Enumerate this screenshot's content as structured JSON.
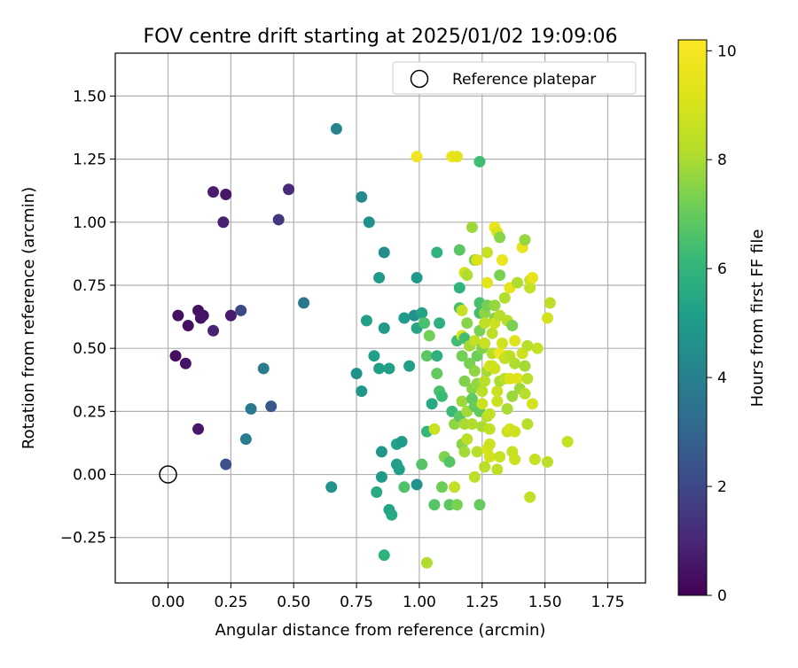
{
  "chart_data": {
    "type": "scatter",
    "title": "FOV centre drift starting at 2025/01/02 19:09:06",
    "xlabel": "Angular distance from reference (arcmin)",
    "ylabel": "Rotation from reference (arcmin)",
    "xlim": [
      -0.21,
      1.9
    ],
    "ylim": [
      -0.43,
      1.67
    ],
    "xticks": [
      0.0,
      0.25,
      0.5,
      0.75,
      1.0,
      1.25,
      1.5,
      1.75
    ],
    "xtick_labels": [
      "0.00",
      "0.25",
      "0.50",
      "0.75",
      "1.00",
      "1.25",
      "1.50",
      "1.75"
    ],
    "yticks": [
      -0.25,
      0.0,
      0.25,
      0.5,
      0.75,
      1.0,
      1.25,
      1.5
    ],
    "ytick_labels": [
      "−0.25",
      "0.00",
      "0.25",
      "0.50",
      "0.75",
      "1.00",
      "1.25",
      "1.50"
    ],
    "grid": true,
    "legend": {
      "position": "top-right",
      "label": "Reference platepar",
      "marker": "open-circle"
    },
    "reference_point": {
      "x": 0.0,
      "y": 0.0
    },
    "colorbar": {
      "label": "Hours from first FF file",
      "range": [
        0,
        10.2
      ],
      "ticks": [
        0,
        2,
        4,
        6,
        8,
        10
      ],
      "tick_labels": [
        "0",
        "2",
        "4",
        "6",
        "8",
        "10"
      ],
      "colormap": "viridis"
    },
    "points": [
      [
        0.03,
        0.47,
        0.3
      ],
      [
        0.04,
        0.63,
        0.4
      ],
      [
        0.07,
        0.44,
        0.5
      ],
      [
        0.08,
        0.59,
        0.4
      ],
      [
        0.12,
        0.65,
        0.4
      ],
      [
        0.13,
        0.62,
        0.5
      ],
      [
        0.14,
        0.63,
        0.5
      ],
      [
        0.12,
        0.18,
        0.6
      ],
      [
        0.18,
        0.57,
        0.9
      ],
      [
        0.25,
        0.63,
        0.7
      ],
      [
        0.29,
        0.65,
        2.0
      ],
      [
        0.23,
        0.04,
        2.3
      ],
      [
        0.18,
        1.12,
        0.7
      ],
      [
        0.23,
        1.11,
        0.6
      ],
      [
        0.22,
        1.0,
        0.8
      ],
      [
        0.48,
        1.13,
        1.1
      ],
      [
        0.44,
        1.01,
        1.4
      ],
      [
        0.31,
        0.14,
        3.9
      ],
      [
        0.33,
        0.26,
        3.7
      ],
      [
        0.38,
        0.42,
        3.9
      ],
      [
        0.41,
        0.27,
        2.5
      ],
      [
        0.54,
        0.68,
        3.6
      ],
      [
        0.67,
        1.37,
        4.1
      ],
      [
        0.65,
        -0.05,
        4.7
      ],
      [
        0.77,
        1.1,
        4.4
      ],
      [
        0.8,
        1.0,
        4.6
      ],
      [
        0.75,
        0.4,
        4.7
      ],
      [
        0.77,
        0.33,
        4.8
      ],
      [
        0.79,
        0.61,
        5.2
      ],
      [
        0.82,
        0.47,
        5.2
      ],
      [
        0.84,
        0.42,
        5.2
      ],
      [
        0.84,
        0.78,
        5.0
      ],
      [
        0.86,
        0.88,
        4.5
      ],
      [
        0.86,
        0.58,
        5.0
      ],
      [
        0.85,
        0.09,
        4.8
      ],
      [
        0.85,
        -0.01,
        5.0
      ],
      [
        0.88,
        0.42,
        5.2
      ],
      [
        0.83,
        -0.07,
        5.5
      ],
      [
        0.86,
        -0.32,
        5.9
      ],
      [
        0.88,
        -0.14,
        5.3
      ],
      [
        0.89,
        -0.16,
        5.5
      ],
      [
        0.91,
        0.12,
        5.3
      ],
      [
        0.91,
        0.04,
        5.2
      ],
      [
        0.92,
        0.02,
        5.2
      ],
      [
        0.93,
        0.13,
        5.0
      ],
      [
        0.94,
        0.62,
        5.0
      ],
      [
        0.94,
        -0.05,
        6.6
      ],
      [
        0.96,
        0.43,
        5.2
      ],
      [
        0.98,
        0.63,
        4.6
      ],
      [
        0.99,
        0.58,
        5.4
      ],
      [
        0.99,
        -0.04,
        4.7
      ],
      [
        0.99,
        0.78,
        4.9
      ],
      [
        1.01,
        0.64,
        5.3
      ],
      [
        1.01,
        0.04,
        6.7
      ],
      [
        1.02,
        0.6,
        6.5
      ],
      [
        1.03,
        0.17,
        6.1
      ],
      [
        1.03,
        -0.35,
        8.1
      ],
      [
        1.03,
        0.47,
        6.8
      ],
      [
        1.04,
        0.55,
        7.2
      ],
      [
        1.05,
        0.28,
        5.5
      ],
      [
        1.06,
        0.18,
        8.7
      ],
      [
        1.06,
        -0.12,
        6.7
      ],
      [
        1.07,
        0.88,
        5.9
      ],
      [
        1.07,
        0.47,
        5.8
      ],
      [
        1.07,
        0.4,
        6.9
      ],
      [
        1.08,
        0.6,
        5.8
      ],
      [
        1.08,
        0.33,
        6.5
      ],
      [
        1.09,
        -0.05,
        7.1
      ],
      [
        1.09,
        0.31,
        6.2
      ],
      [
        1.1,
        0.07,
        7.4
      ],
      [
        1.12,
        -0.12,
        6.8
      ],
      [
        1.12,
        0.05,
        6.7
      ],
      [
        1.13,
        0.25,
        6.2
      ],
      [
        0.99,
        1.26,
        9.8
      ],
      [
        1.13,
        1.26,
        9.6
      ],
      [
        1.15,
        1.26,
        9.4
      ],
      [
        1.14,
        0.2,
        7.6
      ],
      [
        1.14,
        -0.05,
        8.5
      ],
      [
        1.15,
        -0.12,
        7.3
      ],
      [
        1.15,
        0.53,
        6.3
      ],
      [
        1.16,
        0.23,
        6.8
      ],
      [
        1.16,
        0.74,
        5.9
      ],
      [
        1.16,
        0.66,
        6.5
      ],
      [
        1.16,
        0.89,
        6.8
      ],
      [
        1.17,
        0.55,
        9.2
      ],
      [
        1.17,
        0.47,
        7.2
      ],
      [
        1.17,
        0.29,
        7.8
      ],
      [
        1.17,
        0.65,
        8.6
      ],
      [
        1.17,
        0.12,
        7.5
      ],
      [
        1.18,
        0.8,
        8.9
      ],
      [
        1.18,
        0.37,
        7.4
      ],
      [
        1.18,
        0.54,
        6.4
      ],
      [
        1.18,
        0.2,
        8.0
      ],
      [
        1.18,
        0.09,
        7.9
      ],
      [
        1.19,
        0.79,
        8.1
      ],
      [
        1.19,
        0.6,
        7.5
      ],
      [
        1.19,
        0.25,
        7.9
      ],
      [
        1.19,
        0.14,
        8.3
      ],
      [
        1.2,
        0.44,
        7.3
      ],
      [
        1.2,
        0.51,
        7.9
      ],
      [
        1.21,
        0.98,
        7.8
      ],
      [
        1.21,
        0.34,
        7.5
      ],
      [
        1.21,
        0.3,
        6.9
      ],
      [
        1.21,
        0.2,
        8.1
      ],
      [
        1.22,
        0.41,
        7.6
      ],
      [
        1.22,
        0.85,
        7.4
      ],
      [
        1.22,
        0.27,
        7.0
      ],
      [
        1.22,
        0.53,
        8.5
      ],
      [
        1.22,
        -0.01,
        8.4
      ],
      [
        1.23,
        0.85,
        9.2
      ],
      [
        1.23,
        0.36,
        7.7
      ],
      [
        1.23,
        0.09,
        8.2
      ],
      [
        1.23,
        0.47,
        7.1
      ],
      [
        1.24,
        1.24,
        6.3
      ],
      [
        1.24,
        0.64,
        6.4
      ],
      [
        1.24,
        0.68,
        6.5
      ],
      [
        1.24,
        0.57,
        7.3
      ],
      [
        1.24,
        0.25,
        6.9
      ],
      [
        1.24,
        -0.12,
        7.0
      ],
      [
        1.25,
        0.5,
        7.4
      ],
      [
        1.25,
        0.33,
        8.3
      ],
      [
        1.25,
        0.19,
        8.0
      ],
      [
        1.25,
        0.28,
        8.8
      ],
      [
        1.26,
        0.03,
        8.3
      ],
      [
        1.26,
        0.64,
        7.6
      ],
      [
        1.26,
        0.37,
        8.3
      ],
      [
        1.26,
        0.6,
        8.4
      ],
      [
        1.26,
        0.52,
        8.6
      ],
      [
        1.27,
        0.76,
        9.4
      ],
      [
        1.27,
        0.67,
        7.2
      ],
      [
        1.27,
        0.41,
        7.9
      ],
      [
        1.27,
        0.23,
        8.2
      ],
      [
        1.27,
        0.88,
        8.6
      ],
      [
        1.27,
        0.1,
        9.0
      ],
      [
        1.28,
        0.43,
        9.2
      ],
      [
        1.28,
        0.24,
        8.5
      ],
      [
        1.28,
        0.18,
        8.5
      ],
      [
        1.28,
        0.12,
        8.8
      ],
      [
        1.28,
        0.07,
        8.9
      ],
      [
        1.29,
        0.43,
        8.7
      ],
      [
        1.29,
        0.56,
        8.4
      ],
      [
        1.29,
        0.48,
        8.3
      ],
      [
        1.3,
        0.42,
        8.8
      ],
      [
        1.3,
        0.62,
        7.5
      ],
      [
        1.3,
        0.98,
        9.6
      ],
      [
        1.3,
        0.67,
        7.7
      ],
      [
        1.3,
        0.6,
        8.8
      ],
      [
        1.31,
        0.33,
        8.7
      ],
      [
        1.31,
        0.96,
        9.1
      ],
      [
        1.31,
        0.02,
        8.4
      ],
      [
        1.31,
        0.29,
        8.7
      ],
      [
        1.32,
        0.48,
        9.8
      ],
      [
        1.32,
        0.79,
        7.3
      ],
      [
        1.32,
        0.94,
        7.5
      ],
      [
        1.32,
        0.63,
        8.2
      ],
      [
        1.32,
        0.37,
        8.0
      ],
      [
        1.32,
        0.07,
        8.6
      ],
      [
        1.33,
        0.85,
        9.6
      ],
      [
        1.33,
        0.52,
        8.9
      ],
      [
        1.34,
        0.7,
        8.1
      ],
      [
        1.34,
        0.46,
        8.5
      ],
      [
        1.34,
        0.38,
        8.3
      ],
      [
        1.35,
        0.47,
        8.7
      ],
      [
        1.35,
        0.61,
        8.2
      ],
      [
        1.35,
        0.26,
        8.0
      ],
      [
        1.35,
        0.17,
        8.6
      ],
      [
        1.36,
        0.74,
        9.5
      ],
      [
        1.36,
        0.47,
        8.4
      ],
      [
        1.36,
        0.38,
        9.2
      ],
      [
        1.36,
        0.18,
        9.0
      ],
      [
        1.37,
        0.09,
        8.6
      ],
      [
        1.37,
        0.31,
        7.8
      ],
      [
        1.37,
        0.59,
        7.3
      ],
      [
        1.38,
        0.44,
        8.1
      ],
      [
        1.38,
        0.17,
        8.8
      ],
      [
        1.38,
        0.53,
        9.3
      ],
      [
        1.38,
        0.06,
        8.7
      ],
      [
        1.39,
        0.76,
        8.1
      ],
      [
        1.39,
        0.38,
        9.3
      ],
      [
        1.4,
        0.34,
        7.8
      ],
      [
        1.41,
        0.48,
        8.8
      ],
      [
        1.41,
        0.9,
        9.5
      ],
      [
        1.42,
        0.32,
        8.2
      ],
      [
        1.42,
        0.93,
        7.7
      ],
      [
        1.42,
        0.43,
        7.9
      ],
      [
        1.43,
        0.2,
        8.2
      ],
      [
        1.43,
        0.38,
        8.3
      ],
      [
        1.43,
        0.51,
        8.3
      ],
      [
        1.44,
        0.74,
        8.5
      ],
      [
        1.44,
        0.77,
        8.7
      ],
      [
        1.44,
        -0.09,
        8.5
      ],
      [
        1.45,
        0.78,
        9.5
      ],
      [
        1.45,
        0.28,
        9.0
      ],
      [
        1.46,
        0.06,
        8.6
      ],
      [
        1.47,
        0.5,
        8.6
      ],
      [
        1.51,
        0.62,
        8.9
      ],
      [
        1.51,
        0.05,
        8.3
      ],
      [
        1.52,
        0.68,
        8.4
      ],
      [
        1.59,
        0.13,
        8.6
      ]
    ]
  }
}
